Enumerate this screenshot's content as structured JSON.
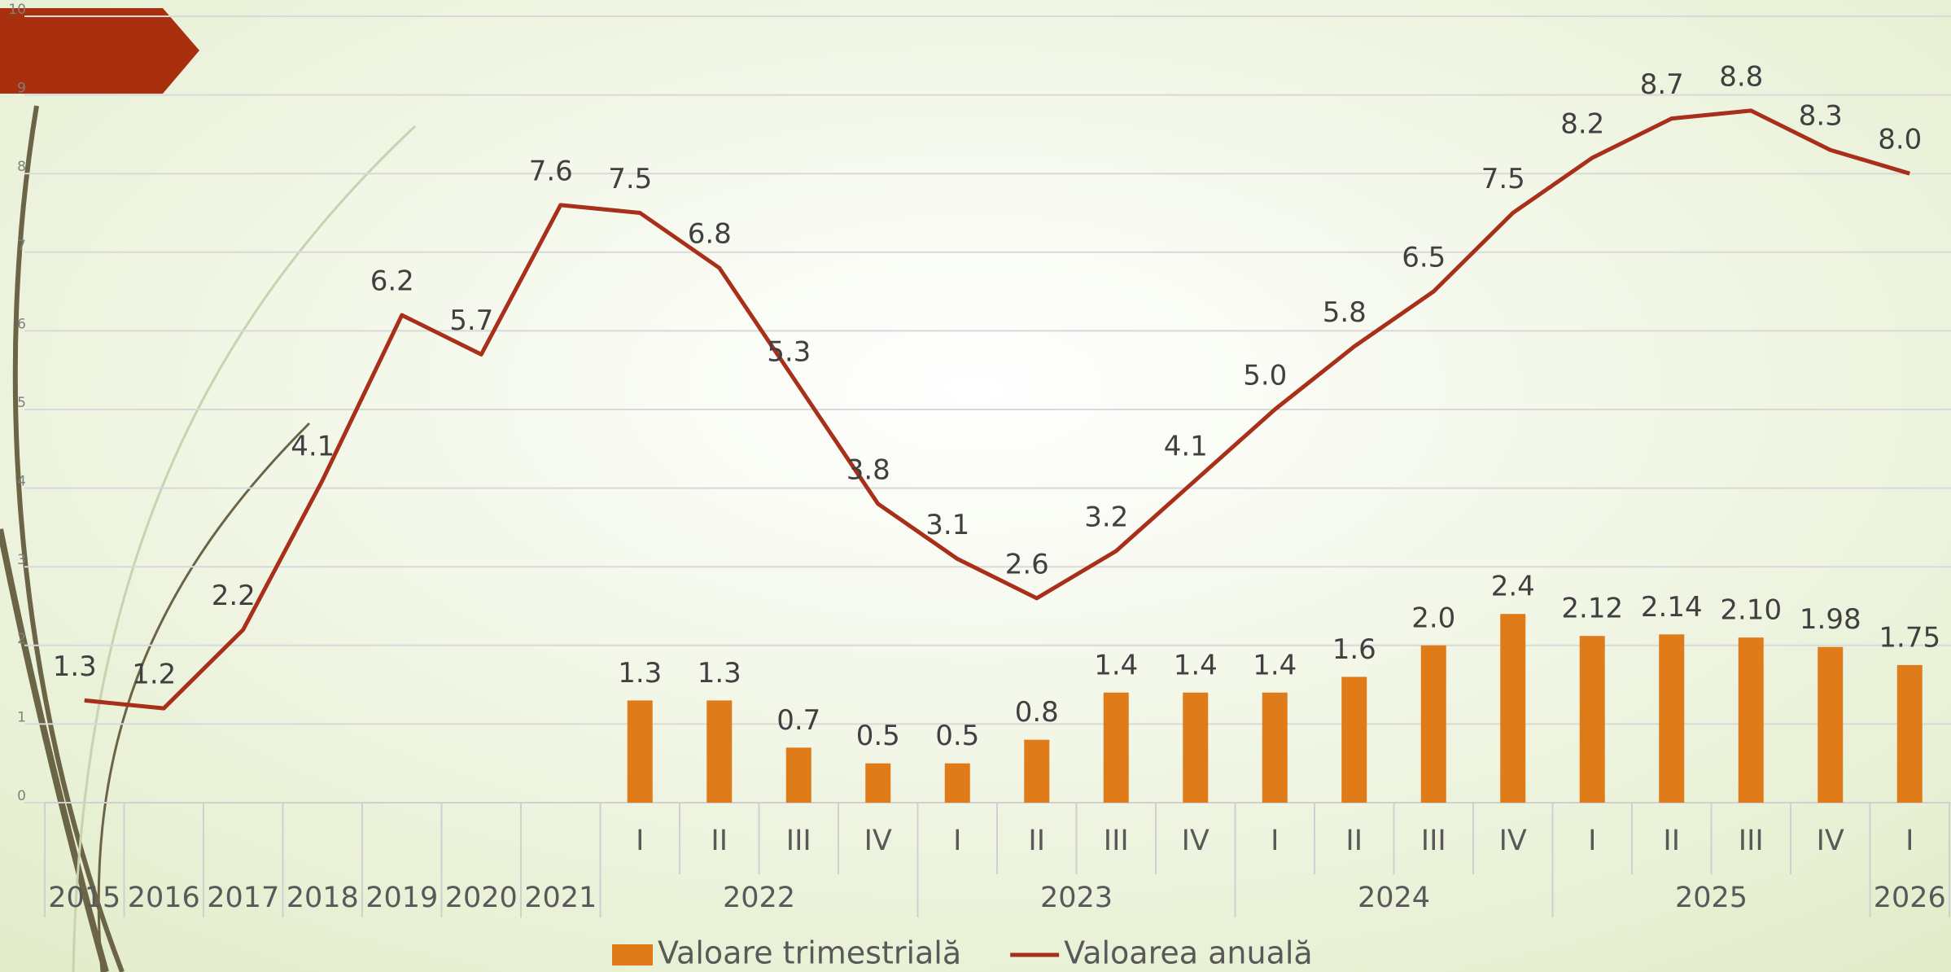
{
  "chart_data": {
    "type": "bar+line",
    "categories": [
      "2015",
      "2016",
      "2017",
      "2018",
      "2019",
      "2020",
      "2021",
      "I",
      "II",
      "III",
      "IV",
      "I",
      "II",
      "III",
      "IV",
      "I",
      "II",
      "III",
      "IV",
      "I",
      "II",
      "III",
      "IV",
      "I"
    ],
    "category_groups": [
      "2022",
      "2023",
      "2024",
      "2025",
      "2026"
    ],
    "series": [
      {
        "name": "Valoare trimestrială",
        "type": "bar",
        "color": "#e07b1a",
        "values": [
          null,
          null,
          null,
          null,
          null,
          null,
          null,
          1.3,
          1.3,
          0.7,
          0.5,
          0.5,
          0.8,
          1.4,
          1.4,
          1.4,
          1.6,
          2.0,
          2.4,
          2.12,
          2.14,
          2.1,
          1.98,
          1.75
        ],
        "value_labels": [
          null,
          null,
          null,
          null,
          null,
          null,
          null,
          "1.3",
          "1.3",
          "0.7",
          "0.5",
          "0.5",
          "0.8",
          "1.4",
          "1.4",
          "1.4",
          "1.6",
          "2.0",
          "2.4",
          "2.12",
          "2.14",
          "2.10",
          "1.98",
          "1.75"
        ]
      },
      {
        "name": "Valoarea anuală",
        "type": "line",
        "color": "#a8301a",
        "values": [
          1.3,
          1.2,
          2.2,
          4.1,
          6.2,
          5.7,
          7.6,
          7.5,
          6.8,
          5.3,
          3.8,
          3.1,
          2.6,
          3.2,
          4.1,
          5.0,
          5.8,
          6.5,
          7.5,
          8.2,
          8.7,
          8.8,
          8.3,
          8.0
        ],
        "value_labels": [
          "1.3",
          "1.2",
          "2.2",
          "4.1",
          "6.2",
          "5.7",
          "7.6",
          "7.5",
          "6.8",
          "5.3",
          "3.8",
          "3.1",
          "2.6",
          "3.2",
          "4.1",
          "5.0",
          "5.8",
          "6.5",
          "7.5",
          "8.2",
          "8.7",
          "8.8",
          "8.3",
          "8.0"
        ]
      }
    ],
    "ylim": [
      0,
      10
    ],
    "yticks": [
      0,
      1,
      2,
      3,
      4,
      5,
      6,
      7,
      8,
      9,
      10
    ],
    "grid": true,
    "legend": "bottom"
  }
}
